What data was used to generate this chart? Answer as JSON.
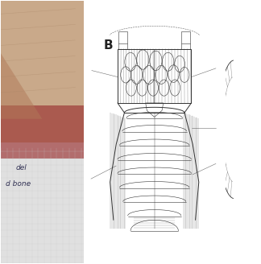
{
  "fig_width": 3.26,
  "fig_height": 3.26,
  "dpi": 100,
  "bg_color": "#ffffff",
  "panel_b_label": "B",
  "text_label1": "del",
  "text_label2": "d bone",
  "text_fontsize": 6.5,
  "text_color": "#333355",
  "line_color": "#333333",
  "lw_main": 0.7,
  "lw_thin": 0.4
}
